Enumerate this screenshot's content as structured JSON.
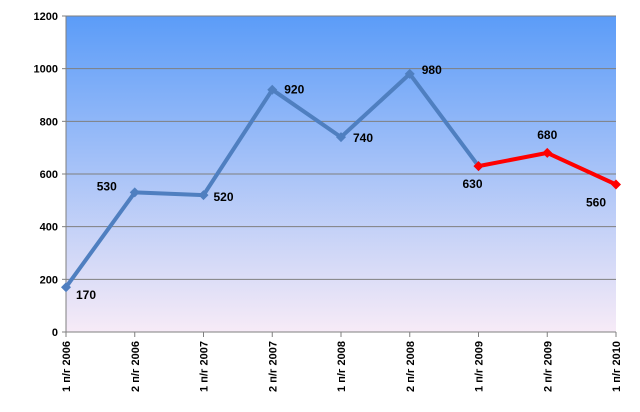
{
  "chart_data": {
    "type": "line",
    "categories": [
      "1 п/г 2006",
      "2 п/г 2006",
      "1 п/г 2007",
      "2 п/г 2007",
      "1 п/г 2008",
      "2 п/г 2008",
      "1 п/г 2009",
      "2 п/г 2009",
      "1 п/г 2010"
    ],
    "series": [
      {
        "values": [
          170,
          530,
          520,
          920,
          740,
          980,
          630,
          null,
          null
        ],
        "color": "#4f7fc0"
      },
      {
        "values": [
          null,
          null,
          null,
          null,
          null,
          null,
          630,
          680,
          560
        ],
        "color": "#ff0000"
      }
    ],
    "data_labels": [
      "170",
      "530",
      "520",
      "920",
      "740",
      "980",
      "630",
      "680",
      "560"
    ],
    "title": "",
    "xlabel": "",
    "ylabel": "",
    "ylim": [
      0,
      1200
    ],
    "yticks": [
      0,
      200,
      400,
      600,
      800,
      1000,
      1200
    ],
    "ytick_labels": [
      "0",
      "200",
      "400",
      "600",
      "800",
      "1000",
      "1200"
    ],
    "grid": true,
    "legend": "none",
    "plot_background": {
      "top_color": "#5b9cf8",
      "bottom_color": "#f7ebf7"
    },
    "gridline_color": "#7f7f7f"
  }
}
